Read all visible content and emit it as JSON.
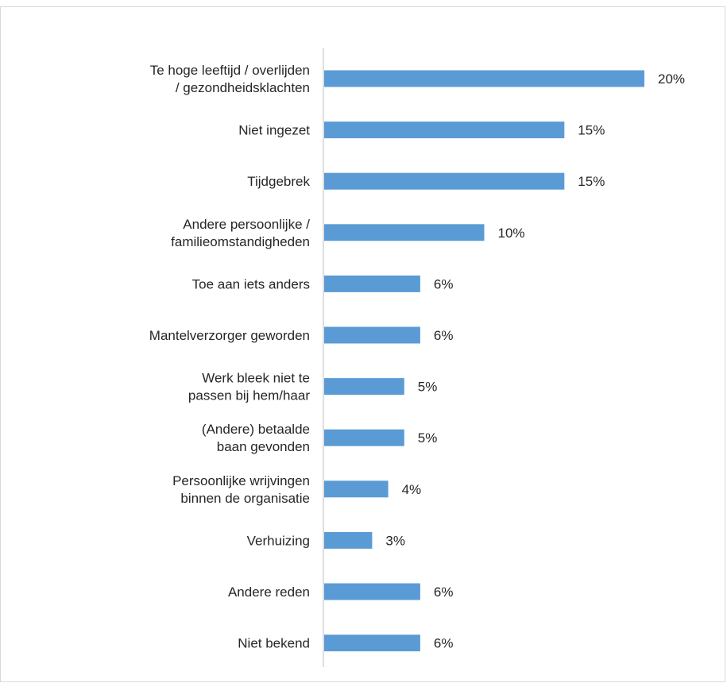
{
  "chart_data": {
    "type": "bar",
    "orientation": "horizontal",
    "categories": [
      [
        "Te hoge leeftijd / overlijden",
        "/ gezondheidsklachten"
      ],
      [
        "Niet ingezet"
      ],
      [
        "Tijdgebrek"
      ],
      [
        "Andere persoonlijke /",
        "familieomstandigheden"
      ],
      [
        "Toe aan iets anders"
      ],
      [
        "Mantelverzorger geworden"
      ],
      [
        "Werk bleek niet te",
        "passen bij hem/haar"
      ],
      [
        "(Andere) betaalde",
        "baan gevonden"
      ],
      [
        "Persoonlijke wrijvingen",
        "binnen de organisatie"
      ],
      [
        "Verhuizing"
      ],
      [
        "Andere reden"
      ],
      [
        "Niet bekend"
      ]
    ],
    "values": [
      20,
      15,
      15,
      10,
      6,
      6,
      5,
      5,
      4,
      3,
      6,
      6
    ],
    "value_labels": [
      "20%",
      "15%",
      "15%",
      "10%",
      "6%",
      "6%",
      "5%",
      "5%",
      "4%",
      "3%",
      "6%",
      "6%"
    ],
    "title": "",
    "xlabel": "",
    "ylabel": "",
    "xlim": [
      0,
      21
    ],
    "grid": false,
    "legend": "none",
    "bar_color": "#5b9bd5",
    "axis_color": "#bfbfbf",
    "text_color": "#262626"
  }
}
